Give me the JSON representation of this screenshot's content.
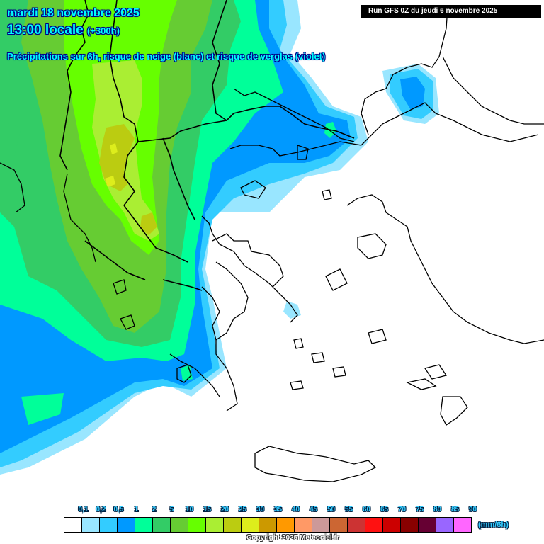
{
  "header": {
    "date": "mardi 18 novembre 2025",
    "time": "13:00 locale",
    "lead": "(+300h)",
    "subtitle": "Précipitations sur 6h, risque de neige (blanc) et risque de verglas (violet)",
    "run": "Run GFS 0Z du jeudi 6 novembre 2025"
  },
  "map": {
    "region": "Grèce / Balkans / Mer Égée",
    "colors": {
      "c01": "#99e6ff",
      "c02": "#33ccff",
      "c05": "#0099ff",
      "c1": "#00ff99",
      "c2": "#33cc66",
      "c5": "#66cc33",
      "c10": "#66ff00",
      "c15": "#aaee33",
      "c20": "#bbcc11"
    }
  },
  "legend": {
    "labels": [
      "0,1",
      "0,2",
      "0,5",
      "1",
      "2",
      "5",
      "10",
      "15",
      "20",
      "25",
      "30",
      "35",
      "40",
      "45",
      "50",
      "55",
      "60",
      "65",
      "70",
      "75",
      "80",
      "85",
      "90"
    ],
    "colors": [
      "#ffffff",
      "#99e6ff",
      "#33ccff",
      "#0099ff",
      "#00ff99",
      "#33cc66",
      "#66cc33",
      "#66ff00",
      "#aaee33",
      "#bbcc11",
      "#dded1c",
      "#cc9900",
      "#ff9900",
      "#ff9966",
      "#cc9999",
      "#cc6633",
      "#cc3333",
      "#ff1111",
      "#cc0000",
      "#880000",
      "#660033",
      "#9966ff",
      "#ff66ff"
    ],
    "unit": "(mm/6h)"
  },
  "footer": {
    "copyright": "Copyright 2025 Meteociel.fr"
  }
}
